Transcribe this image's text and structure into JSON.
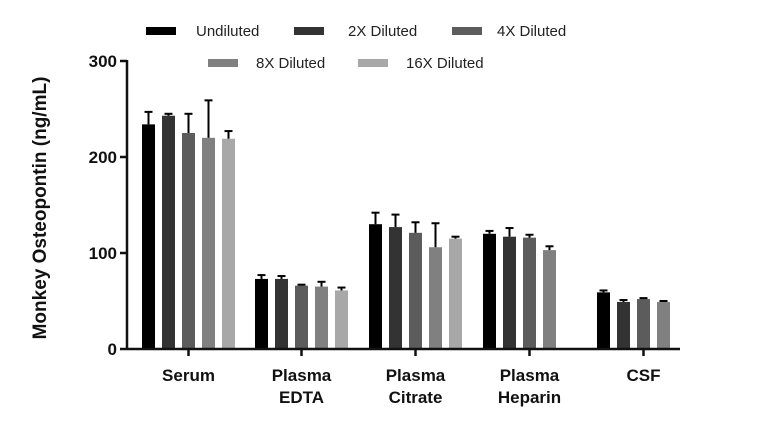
{
  "chart_data": {
    "type": "bar",
    "title": "",
    "xlabel": "",
    "ylabel": "Monkey Osteopontin (ng/mL)",
    "ylim": [
      0,
      300
    ],
    "yticks": [
      0,
      100,
      200,
      300
    ],
    "categories": [
      [
        "Serum"
      ],
      [
        "Plasma",
        "EDTA"
      ],
      [
        "Plasma",
        "Citrate"
      ],
      [
        "Plasma",
        "Heparin"
      ],
      [
        "CSF"
      ]
    ],
    "legend_position": "top",
    "series": [
      {
        "name": "Undiluted",
        "color": "#000000",
        "values": [
          234,
          73,
          130,
          120,
          59
        ],
        "errors": [
          13,
          4,
          12,
          3,
          2
        ]
      },
      {
        "name": "2X Diluted",
        "color": "#333333",
        "values": [
          243,
          73,
          127,
          117,
          49
        ],
        "errors": [
          2,
          3,
          13,
          9,
          2
        ]
      },
      {
        "name": "4X Diluted",
        "color": "#5c5c5c",
        "values": [
          225,
          66,
          121,
          116,
          52
        ],
        "errors": [
          20,
          1,
          11,
          3,
          1
        ]
      },
      {
        "name": "8X Diluted",
        "color": "#808080",
        "values": [
          220,
          65,
          106,
          103,
          49
        ],
        "errors": [
          39,
          5,
          25,
          4,
          1
        ]
      },
      {
        "name": "16X Diluted",
        "color": "#a8a8a8",
        "values": [
          219,
          61,
          115,
          null,
          null
        ],
        "errors": [
          8,
          3,
          2,
          null,
          null
        ]
      }
    ]
  }
}
